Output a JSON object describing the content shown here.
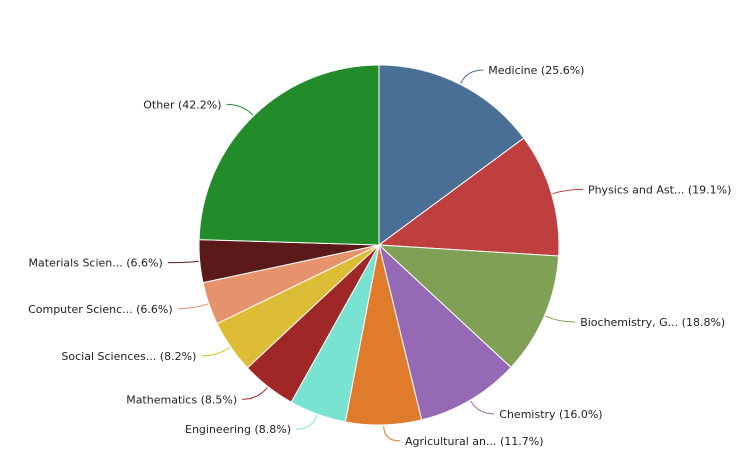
{
  "chart_data": {
    "type": "pie",
    "start_angle_deg": 0,
    "direction": "clockwise",
    "slices": [
      {
        "label": "Medicine (25.6%)",
        "value": 25.6,
        "color": "#4a6f96"
      },
      {
        "label": "Physics and Ast... (19.1%)",
        "value": 19.1,
        "color": "#bf3f3f"
      },
      {
        "label": "Biochemistry, G... (18.8%)",
        "value": 18.8,
        "color": "#7fa055"
      },
      {
        "label": "Chemistry (16.0%)",
        "value": 16.0,
        "color": "#9669b4"
      },
      {
        "label": "Agricultural an... (11.7%)",
        "value": 11.7,
        "color": "#e07b2b"
      },
      {
        "label": "Engineering (8.8%)",
        "value": 8.8,
        "color": "#77e3d0"
      },
      {
        "label": "Mathematics (8.5%)",
        "value": 8.5,
        "color": "#a02727"
      },
      {
        "label": "Social Sciences... (8.2%)",
        "value": 8.2,
        "color": "#dcbd35"
      },
      {
        "label": "Computer Scienc... (6.6%)",
        "value": 6.6,
        "color": "#e6926d"
      },
      {
        "label": "Materials Scien... (6.6%)",
        "value": 6.6,
        "color": "#5a1a1a"
      },
      {
        "label": "Other (42.2%)",
        "value": 42.2,
        "color": "#228b2a"
      }
    ]
  }
}
